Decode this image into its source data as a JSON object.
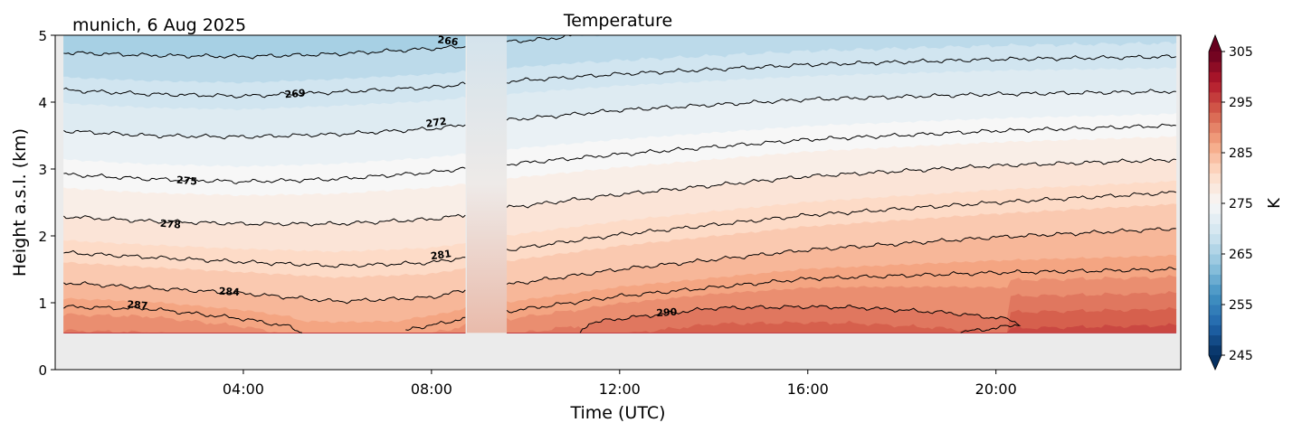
{
  "chart_data": {
    "type": "heatmap",
    "subtype": "filled-contour time-height",
    "title": "Temperature",
    "location_date": "munich, 6 Aug 2025",
    "xlabel": "Time (UTC)",
    "ylabel": "Height a.s.l. (km)",
    "xlim_hours": [
      0,
      23.93
    ],
    "ylim": [
      0,
      5
    ],
    "xticks": [
      {
        "t": 4,
        "label": "04:00"
      },
      {
        "t": 8,
        "label": "08:00"
      },
      {
        "t": 12,
        "label": "12:00"
      },
      {
        "t": 16,
        "label": "16:00"
      },
      {
        "t": 20,
        "label": "20:00"
      }
    ],
    "yticks": [
      {
        "v": 0,
        "label": "0"
      },
      {
        "v": 1,
        "label": "1"
      },
      {
        "v": 2,
        "label": "2"
      },
      {
        "v": 3,
        "label": "3"
      },
      {
        "v": 4,
        "label": "4"
      },
      {
        "v": 5,
        "label": "5"
      }
    ],
    "data_min_height_km": 0.55,
    "missing_interval_hours": [
      8.75,
      9.6
    ],
    "segments": [
      {
        "t_range": [
          0.18,
          8.72
        ],
        "contours": [
          {
            "level": 266,
            "points": [
              [
                0.18,
                4.74
              ],
              [
                2,
                4.7
              ],
              [
                4,
                4.68
              ],
              [
                6,
                4.72
              ],
              [
                8,
                4.8
              ],
              [
                8.72,
                4.83
              ]
            ]
          },
          {
            "level": 269,
            "points": [
              [
                0.18,
                4.18
              ],
              [
                2,
                4.12
              ],
              [
                4,
                4.09
              ],
              [
                6,
                4.15
              ],
              [
                8,
                4.22
              ],
              [
                8.72,
                4.27
              ]
            ]
          },
          {
            "level": 272,
            "points": [
              [
                0.18,
                3.57
              ],
              [
                2,
                3.5
              ],
              [
                4,
                3.48
              ],
              [
                6,
                3.52
              ],
              [
                8,
                3.6
              ],
              [
                8.72,
                3.66
              ]
            ]
          },
          {
            "level": 275,
            "points": [
              [
                0.18,
                2.92
              ],
              [
                2,
                2.85
              ],
              [
                4,
                2.81
              ],
              [
                6,
                2.85
              ],
              [
                8,
                2.95
              ],
              [
                8.72,
                3.01
              ]
            ]
          },
          {
            "level": 278,
            "points": [
              [
                0.18,
                2.29
              ],
              [
                2,
                2.22
              ],
              [
                4,
                2.18
              ],
              [
                6,
                2.18
              ],
              [
                8,
                2.25
              ],
              [
                8.72,
                2.31
              ]
            ]
          },
          {
            "level": 281,
            "points": [
              [
                0.18,
                1.75
              ],
              [
                2,
                1.68
              ],
              [
                4,
                1.61
              ],
              [
                6,
                1.55
              ],
              [
                8,
                1.6
              ],
              [
                8.72,
                1.68
              ]
            ]
          },
          {
            "level": 284,
            "points": [
              [
                0.18,
                1.3
              ],
              [
                2,
                1.22
              ],
              [
                4,
                1.14
              ],
              [
                6,
                1.02
              ],
              [
                8,
                1.08
              ],
              [
                8.72,
                1.19
              ]
            ]
          },
          {
            "level": 287,
            "points": [
              [
                0.18,
                0.94
              ],
              [
                2,
                0.91
              ],
              [
                4,
                0.76
              ],
              [
                5,
                0.64
              ],
              [
                5.25,
                0.55
              ],
              [
                7.4,
                0.55
              ],
              [
                7.6,
                0.62
              ],
              [
                8.3,
                0.7
              ],
              [
                8.72,
                0.78
              ]
            ]
          }
        ]
      },
      {
        "t_range": [
          9.6,
          23.83
        ],
        "contours": [
          {
            "level": 266,
            "points": [
              [
                9.6,
                4.9
              ],
              [
                10.5,
                4.95
              ],
              [
                11.2,
                5.01
              ]
            ]
          },
          {
            "level": 269,
            "points": [
              [
                9.6,
                4.31
              ],
              [
                12,
                4.42
              ],
              [
                16,
                4.56
              ],
              [
                20,
                4.64
              ],
              [
                23.83,
                4.68
              ]
            ]
          },
          {
            "level": 272,
            "points": [
              [
                9.6,
                3.73
              ],
              [
                12,
                3.88
              ],
              [
                16,
                4.04
              ],
              [
                20,
                4.12
              ],
              [
                23.83,
                4.16
              ]
            ]
          },
          {
            "level": 275,
            "points": [
              [
                9.6,
                3.07
              ],
              [
                12,
                3.22
              ],
              [
                16,
                3.44
              ],
              [
                20,
                3.57
              ],
              [
                23.83,
                3.65
              ]
            ]
          },
          {
            "level": 278,
            "points": [
              [
                9.6,
                2.42
              ],
              [
                12,
                2.62
              ],
              [
                16,
                2.89
              ],
              [
                20,
                3.05
              ],
              [
                23.83,
                3.14
              ]
            ]
          },
          {
            "level": 281,
            "points": [
              [
                9.6,
                1.79
              ],
              [
                12,
                2.02
              ],
              [
                16,
                2.31
              ],
              [
                20,
                2.5
              ],
              [
                23.83,
                2.65
              ]
            ]
          },
          {
            "level": 284,
            "points": [
              [
                9.6,
                1.27
              ],
              [
                12,
                1.5
              ],
              [
                16,
                1.79
              ],
              [
                20,
                1.98
              ],
              [
                23.83,
                2.11
              ]
            ]
          },
          {
            "level": 287,
            "points": [
              [
                9.6,
                0.87
              ],
              [
                12,
                1.1
              ],
              [
                16,
                1.36
              ],
              [
                20,
                1.45
              ],
              [
                23.83,
                1.5
              ]
            ]
          },
          {
            "level": 290,
            "points": [
              [
                11.16,
                0.55
              ],
              [
                11.35,
                0.7
              ],
              [
                12,
                0.76
              ],
              [
                14,
                0.92
              ],
              [
                16,
                0.94
              ],
              [
                17,
                0.93
              ],
              [
                19,
                0.85
              ],
              [
                20.3,
                0.75
              ],
              [
                20.5,
                0.68
              ],
              [
                20.1,
                0.63
              ],
              [
                19.5,
                0.58
              ],
              [
                19.2,
                0.55
              ]
            ],
            "closed": true
          }
        ]
      }
    ],
    "contour_labels": [
      {
        "text": "266",
        "t": 8.35,
        "km": 4.92,
        "angle": 8
      },
      {
        "text": "269",
        "t": 5.1,
        "km": 4.13,
        "angle": -5
      },
      {
        "text": "272",
        "t": 8.1,
        "km": 3.7,
        "angle": -8
      },
      {
        "text": "275",
        "t": 2.8,
        "km": 2.83,
        "angle": 5
      },
      {
        "text": "278",
        "t": 2.45,
        "km": 2.18,
        "angle": 5
      },
      {
        "text": "281",
        "t": 8.2,
        "km": 1.72,
        "angle": -8
      },
      {
        "text": "284",
        "t": 3.7,
        "km": 1.17,
        "angle": 3
      },
      {
        "text": "287",
        "t": 1.75,
        "km": 0.97,
        "angle": 5
      },
      {
        "text": "290",
        "t": 13.0,
        "km": 0.86,
        "angle": -4
      }
    ],
    "colorbar": {
      "label": "K",
      "range": [
        245,
        305
      ],
      "step": 2,
      "extend": "both",
      "ticks": [
        {
          "v": 245,
          "label": "245"
        },
        {
          "v": 255,
          "label": "255"
        },
        {
          "v": 265,
          "label": "265"
        },
        {
          "v": 275,
          "label": "275"
        },
        {
          "v": 285,
          "label": "285"
        },
        {
          "v": 295,
          "label": "295"
        },
        {
          "v": 305,
          "label": "305"
        }
      ],
      "colormap": "RdBu_r",
      "colors": [
        "#053061",
        "#2166ac",
        "#4393c3",
        "#92c5de",
        "#d1e5f0",
        "#f7f7f7",
        "#fddbc7",
        "#f4a582",
        "#d6604d",
        "#b2182b",
        "#67001f"
      ]
    },
    "colors": {
      "axes_background": "#ebebeb",
      "contour_line": "#000000"
    }
  }
}
